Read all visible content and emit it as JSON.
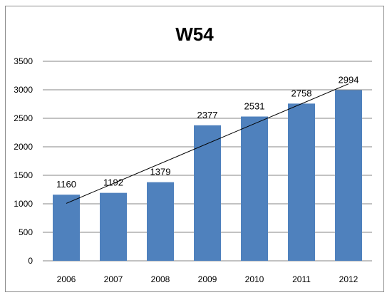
{
  "chart_data": {
    "type": "bar",
    "title": "W54",
    "categories": [
      "2006",
      "2007",
      "2008",
      "2009",
      "2010",
      "2011",
      "2012"
    ],
    "values": [
      1160,
      1192,
      1379,
      2377,
      2531,
      2758,
      2994
    ],
    "ylim": [
      0,
      3500
    ],
    "yticks": [
      0,
      500,
      1000,
      1500,
      2000,
      2500,
      3000,
      3500
    ],
    "xlabel": "",
    "ylabel": "",
    "grid": true,
    "legend": "none",
    "data_labels": true,
    "trendline": "linear",
    "colors": {
      "bar": "#4f81bd",
      "grid": "#868686",
      "trendline": "#000000"
    }
  }
}
